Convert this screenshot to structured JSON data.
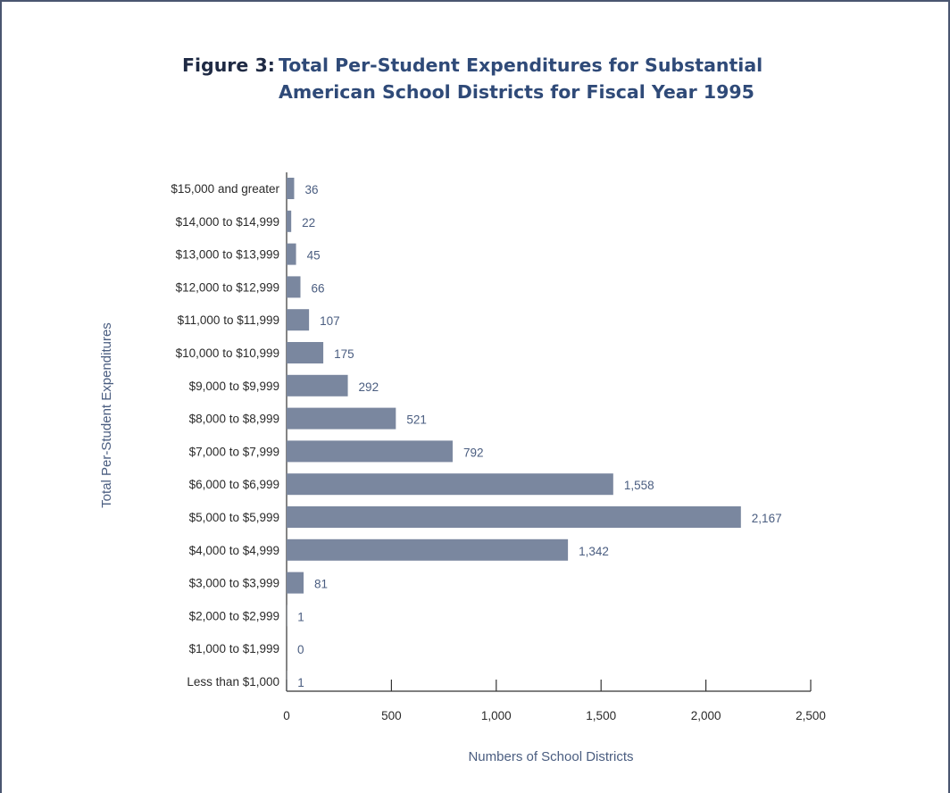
{
  "figure": {
    "label": "Figure 3:",
    "title": "Total Per-Student Expenditures for Substantial American School Districts for Fiscal Year 1995"
  },
  "chart_data": {
    "type": "bar",
    "orientation": "horizontal",
    "title": "Total Per-Student Expenditures for Substantial American School Districts for Fiscal Year 1995",
    "xlabel": "Numbers of School Districts",
    "ylabel": "Total Per-Student Expenditures",
    "categories": [
      "$15,000 and greater",
      "$14,000 to $14,999",
      "$13,000 to $13,999",
      "$12,000 to $12,999",
      "$11,000 to $11,999",
      "$10,000 to $10,999",
      "$9,000 to $9,999",
      "$8,000 to $8,999",
      "$7,000 to $7,999",
      "$6,000 to $6,999",
      "$5,000 to $5,999",
      "$4,000 to $4,999",
      "$3,000 to $3,999",
      "$2,000 to $2,999",
      "$1,000 to $1,999",
      "Less than $1,000"
    ],
    "values": [
      36,
      22,
      45,
      66,
      107,
      175,
      292,
      521,
      792,
      1558,
      2167,
      1342,
      81,
      1,
      0,
      1
    ],
    "value_labels": [
      "36",
      "22",
      "45",
      "66",
      "107",
      "175",
      "292",
      "521",
      "792",
      "1,558",
      "2,167",
      "1,342",
      "81",
      "1",
      "0",
      "1"
    ],
    "xlim": [
      0,
      2500
    ],
    "xticks": [
      0,
      500,
      1000,
      1500,
      2000,
      2500
    ],
    "xtick_labels": [
      "0",
      "500",
      "1,000",
      "1,500",
      "2,000",
      "2,500"
    ],
    "bar_color": "#7a879f",
    "value_label_color": "#4a5d80",
    "grid": false
  }
}
